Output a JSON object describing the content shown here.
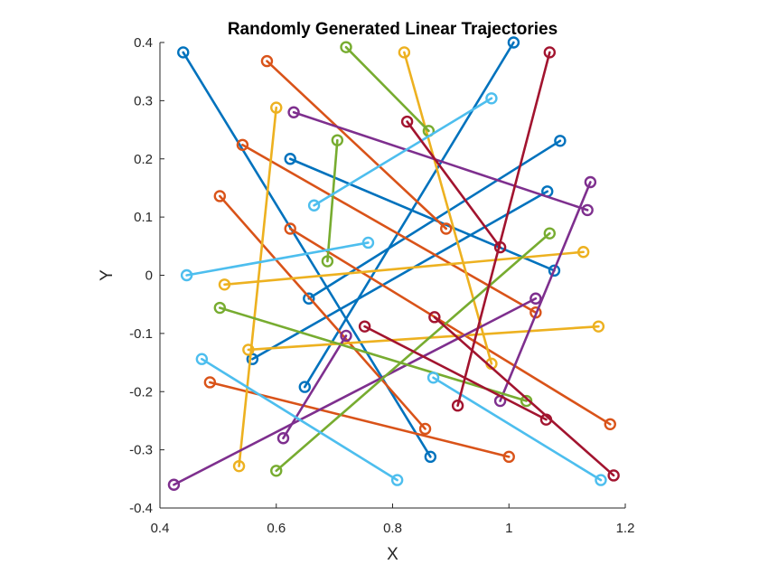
{
  "chart_data": {
    "type": "line",
    "title": "Randomly Generated Linear Trajectories",
    "xlabel": "X",
    "ylabel": "Y",
    "xlim": [
      0.4,
      1.2
    ],
    "ylim": [
      -0.4,
      0.4
    ],
    "xticks": [
      "0.4",
      "0.6",
      "0.8",
      "1",
      "1.2"
    ],
    "yticks": [
      "0.4",
      "0.3",
      "0.2",
      "0.1",
      "0",
      "-0.1",
      "-0.2",
      "-0.3",
      "-0.4"
    ],
    "grid": false,
    "legend": "none",
    "marker": "circle at segment endpoints",
    "colors": [
      "#0072BD",
      "#D95319",
      "#EDB120",
      "#7E2F8E",
      "#77AC30",
      "#4DBEEE",
      "#A2142F"
    ],
    "series": [
      {
        "color": "#0072BD",
        "x": [
          0.44,
          0.865
        ],
        "y": [
          0.383,
          -0.312
        ]
      },
      {
        "color": "#0072BD",
        "x": [
          0.624,
          1.078
        ],
        "y": [
          0.2,
          0.008
        ]
      },
      {
        "color": "#0072BD",
        "x": [
          0.656,
          1.088
        ],
        "y": [
          -0.04,
          0.231
        ]
      },
      {
        "color": "#0072BD",
        "x": [
          0.559,
          1.066
        ],
        "y": [
          -0.144,
          0.144
        ]
      },
      {
        "color": "#0072BD",
        "x": [
          0.649,
          1.008
        ],
        "y": [
          -0.192,
          0.4
        ]
      },
      {
        "color": "#D95319",
        "x": [
          0.584,
          0.892
        ],
        "y": [
          0.368,
          0.08
        ]
      },
      {
        "color": "#D95319",
        "x": [
          0.542,
          1.046
        ],
        "y": [
          0.224,
          -0.064
        ]
      },
      {
        "color": "#D95319",
        "x": [
          0.503,
          0.856
        ],
        "y": [
          0.136,
          -0.264
        ]
      },
      {
        "color": "#D95319",
        "x": [
          0.624,
          1.174
        ],
        "y": [
          0.08,
          -0.256
        ]
      },
      {
        "color": "#D95319",
        "x": [
          0.486,
          1.0
        ],
        "y": [
          -0.184,
          -0.312
        ]
      },
      {
        "color": "#EDB120",
        "x": [
          0.6,
          0.536
        ],
        "y": [
          0.288,
          -0.328
        ]
      },
      {
        "color": "#EDB120",
        "x": [
          0.82,
          0.97
        ],
        "y": [
          0.383,
          -0.152
        ]
      },
      {
        "color": "#EDB120",
        "x": [
          0.511,
          1.128
        ],
        "y": [
          -0.016,
          0.04
        ]
      },
      {
        "color": "#EDB120",
        "x": [
          0.552,
          1.154
        ],
        "y": [
          -0.128,
          -0.088
        ]
      },
      {
        "color": "#7E2F8E",
        "x": [
          0.63,
          1.135
        ],
        "y": [
          0.28,
          0.112
        ]
      },
      {
        "color": "#7E2F8E",
        "x": [
          0.424,
          1.046
        ],
        "y": [
          -0.36,
          -0.04
        ]
      },
      {
        "color": "#7E2F8E",
        "x": [
          0.985,
          1.14
        ],
        "y": [
          -0.216,
          0.16
        ]
      },
      {
        "color": "#7E2F8E",
        "x": [
          0.612,
          0.72
        ],
        "y": [
          -0.28,
          -0.104
        ]
      },
      {
        "color": "#77AC30",
        "x": [
          0.72,
          0.862
        ],
        "y": [
          0.392,
          0.248
        ]
      },
      {
        "color": "#77AC30",
        "x": [
          0.705,
          0.688
        ],
        "y": [
          0.232,
          0.024
        ]
      },
      {
        "color": "#77AC30",
        "x": [
          0.503,
          1.03
        ],
        "y": [
          -0.056,
          -0.216
        ]
      },
      {
        "color": "#77AC30",
        "x": [
          0.6,
          1.07
        ],
        "y": [
          -0.336,
          0.072
        ]
      },
      {
        "color": "#4DBEEE",
        "x": [
          0.665,
          0.97
        ],
        "y": [
          0.12,
          0.304
        ]
      },
      {
        "color": "#4DBEEE",
        "x": [
          0.446,
          0.758
        ],
        "y": [
          0.0,
          0.056
        ]
      },
      {
        "color": "#4DBEEE",
        "x": [
          0.472,
          0.808
        ],
        "y": [
          -0.144,
          -0.352
        ]
      },
      {
        "color": "#4DBEEE",
        "x": [
          0.87,
          1.158
        ],
        "y": [
          -0.176,
          -0.352
        ]
      },
      {
        "color": "#A2142F",
        "x": [
          0.825,
          0.985
        ],
        "y": [
          0.264,
          0.048
        ]
      },
      {
        "color": "#A2142F",
        "x": [
          1.07,
          0.912
        ],
        "y": [
          0.383,
          -0.224
        ]
      },
      {
        "color": "#A2142F",
        "x": [
          0.752,
          1.064
        ],
        "y": [
          -0.088,
          -0.248
        ]
      },
      {
        "color": "#A2142F",
        "x": [
          0.872,
          1.18
        ],
        "y": [
          -0.072,
          -0.344
        ]
      }
    ]
  }
}
